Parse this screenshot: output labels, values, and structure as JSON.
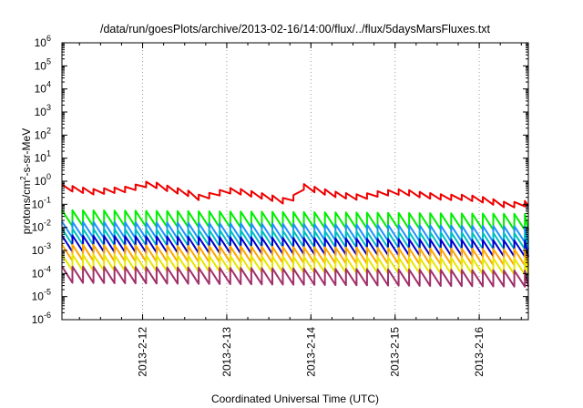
{
  "chart_data": {
    "type": "line",
    "title": "/data/run/goesPlots/archive/2013-02-16/14:00/flux/../flux/5daysMarsFluxes.txt",
    "xlabel": "Coordinated Universal Time (UTC)",
    "ylabel": "protons/cm²-s-sr-MeV",
    "ylabel_parts": {
      "pre": "protons/cm",
      "sup": "2",
      "post": "-s-sr-MeV"
    },
    "y_scale": "log",
    "ylim_exponents": [
      -6,
      6
    ],
    "y_ticks": [
      {
        "base": "10",
        "exp": "-6"
      },
      {
        "base": "10",
        "exp": "-5"
      },
      {
        "base": "10",
        "exp": "-4"
      },
      {
        "base": "10",
        "exp": "-3"
      },
      {
        "base": "10",
        "exp": "-2"
      },
      {
        "base": "10",
        "exp": "-1"
      },
      {
        "base": "10",
        "exp": "0"
      },
      {
        "base": "10",
        "exp": "1"
      },
      {
        "base": "10",
        "exp": "2"
      },
      {
        "base": "10",
        "exp": "3"
      },
      {
        "base": "10",
        "exp": "4"
      },
      {
        "base": "10",
        "exp": "5"
      },
      {
        "base": "10",
        "exp": "6"
      }
    ],
    "xlim": [
      "2013-02-11T01:00",
      "2013-02-16T14:00"
    ],
    "x_ticks": [
      {
        "label": "2013-2-12",
        "value": "2013-02-12T00:00"
      },
      {
        "label": "2013-2-13",
        "value": "2013-02-13T00:00"
      },
      {
        "label": "2013-2-14",
        "value": "2013-02-14T00:00"
      },
      {
        "label": "2013-2-15",
        "value": "2013-02-15T00:00"
      },
      {
        "label": "2013-2-16",
        "value": "2013-02-16T00:00"
      }
    ],
    "grid": true,
    "sawtooth_period_hours": 3,
    "series": [
      {
        "color": "#ee0000",
        "x": [
          "2013-02-11T01:00",
          "2013-02-11T10:00",
          "2013-02-11T20:00",
          "2013-02-12T02:00",
          "2013-02-12T08:00",
          "2013-02-12T13:00",
          "2013-02-12T16:00",
          "2013-02-12T20:00",
          "2013-02-13T00:00",
          "2013-02-13T04:00",
          "2013-02-13T12:00",
          "2013-02-13T18:00",
          "2013-02-13T21:30",
          "2013-02-14T02:00",
          "2013-02-14T08:00",
          "2013-02-14T14:00",
          "2013-02-14T20:00",
          "2013-02-15T02:00",
          "2013-02-15T08:00",
          "2013-02-15T14:00",
          "2013-02-15T20:00",
          "2013-02-16T02:00",
          "2013-02-16T08:00",
          "2013-02-16T14:00"
        ],
        "y": [
          0.55,
          0.35,
          0.45,
          0.8,
          0.45,
          0.3,
          0.2,
          0.25,
          0.4,
          0.35,
          0.2,
          0.12,
          0.6,
          0.4,
          0.25,
          0.2,
          0.3,
          0.35,
          0.25,
          0.2,
          0.2,
          0.15,
          0.09,
          0.11
        ]
      },
      {
        "color": "#00ee00",
        "x": [
          "2013-02-11T01:00",
          "2013-02-16T14:00"
        ],
        "y": [
          0.025,
          0.017
        ]
      },
      {
        "color": "#1e90ff",
        "x": [
          "2013-02-11T01:00",
          "2013-02-16T14:00"
        ],
        "y": [
          0.008,
          0.005
        ]
      },
      {
        "color": "#00bfbf",
        "x": [
          "2013-02-11T01:00",
          "2013-02-16T14:00"
        ],
        "y": [
          0.004,
          0.0025
        ]
      },
      {
        "color": "#0000cc",
        "x": [
          "2013-02-11T01:00",
          "2013-02-16T14:00"
        ],
        "y": [
          0.002,
          0.0012
        ]
      },
      {
        "color": "#ffa500",
        "x": [
          "2013-02-11T01:00",
          "2013-02-16T14:00"
        ],
        "y": [
          0.0008,
          0.0005
        ]
      },
      {
        "color": "#e6e600",
        "x": [
          "2013-02-11T01:00",
          "2013-02-16T14:00"
        ],
        "y": [
          0.0003,
          0.0002
        ]
      },
      {
        "color": "#a0306a",
        "x": [
          "2013-02-11T01:00",
          "2013-02-16T14:00"
        ],
        "y": [
          9e-05,
          6e-05
        ]
      }
    ]
  }
}
